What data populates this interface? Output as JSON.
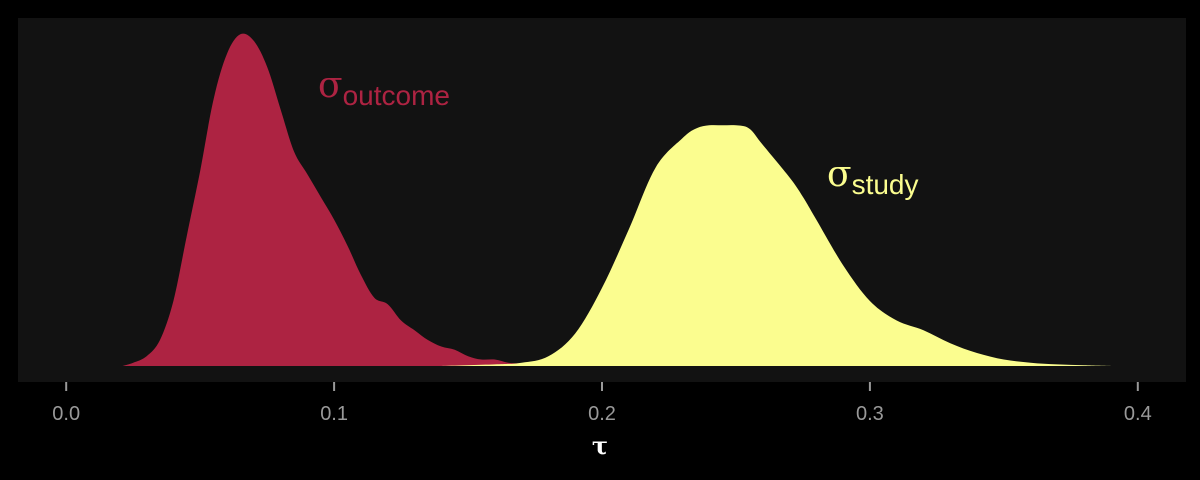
{
  "colors": {
    "background": "#000000",
    "panel": "#121212",
    "tick": "#999999",
    "axis_title": "#ffffff"
  },
  "chart_data": {
    "type": "area",
    "title": "",
    "xlabel": "τ",
    "ylabel": "",
    "xlim": [
      -0.018,
      0.418
    ],
    "ylim": [
      0,
      1.07
    ],
    "x_ticks": [
      0.0,
      0.1,
      0.2,
      0.3,
      0.4
    ],
    "x_tick_labels": [
      "0.0",
      "0.1",
      "0.2",
      "0.3",
      "0.4"
    ],
    "y_ticks": [],
    "grid": false,
    "legend": "none",
    "series": [
      {
        "name": "σoutcome",
        "label_symbol": "σ",
        "label_subscript": "outcome",
        "color": "#ad2342",
        "x": [
          0.021,
          0.025,
          0.03,
          0.035,
          0.04,
          0.045,
          0.05,
          0.055,
          0.06,
          0.065,
          0.07,
          0.075,
          0.08,
          0.085,
          0.09,
          0.095,
          0.1,
          0.105,
          0.11,
          0.115,
          0.12,
          0.125,
          0.13,
          0.135,
          0.14,
          0.145,
          0.15,
          0.155,
          0.16,
          0.165,
          0.17,
          0.175,
          0.18
        ],
        "y": [
          0.0,
          0.01,
          0.03,
          0.08,
          0.2,
          0.4,
          0.6,
          0.82,
          0.96,
          1.02,
          1.0,
          0.92,
          0.79,
          0.66,
          0.59,
          0.52,
          0.45,
          0.37,
          0.28,
          0.21,
          0.19,
          0.14,
          0.11,
          0.08,
          0.06,
          0.05,
          0.03,
          0.02,
          0.02,
          0.01,
          0.008,
          0.004,
          0.0
        ]
      },
      {
        "name": "σstudy",
        "label_symbol": "σ",
        "label_subscript": "study",
        "color": "#fbfd8f",
        "x": [
          0.14,
          0.16,
          0.17,
          0.18,
          0.19,
          0.2,
          0.21,
          0.22,
          0.23,
          0.235,
          0.24,
          0.245,
          0.25,
          0.255,
          0.26,
          0.27,
          0.275,
          0.28,
          0.29,
          0.3,
          0.31,
          0.32,
          0.33,
          0.34,
          0.35,
          0.36,
          0.37,
          0.38,
          0.39
        ],
        "y": [
          0.0,
          0.005,
          0.01,
          0.03,
          0.1,
          0.24,
          0.42,
          0.61,
          0.7,
          0.73,
          0.74,
          0.74,
          0.74,
          0.73,
          0.68,
          0.58,
          0.52,
          0.45,
          0.31,
          0.2,
          0.14,
          0.11,
          0.07,
          0.04,
          0.02,
          0.01,
          0.005,
          0.002,
          0.0
        ]
      }
    ]
  }
}
